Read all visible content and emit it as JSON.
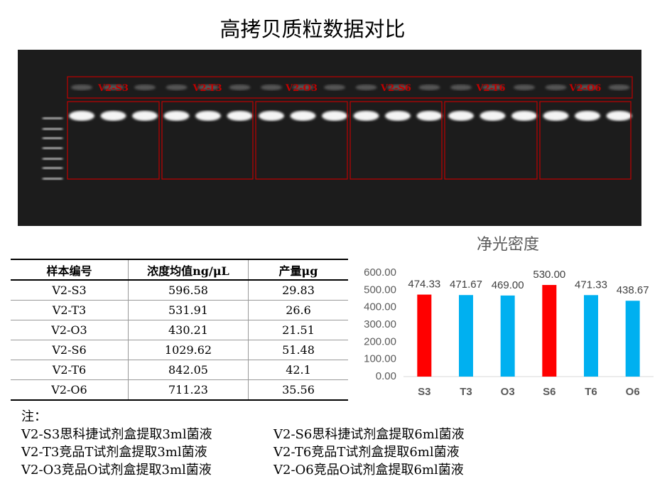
{
  "header": {
    "title": "高拷贝质粒数据对比"
  },
  "gel": {
    "labels": [
      "V2-S3",
      "V2-T3",
      "V2-O3",
      "V2-S6",
      "V2-T6",
      "V2-O6"
    ]
  },
  "table": {
    "columns": [
      "样本编号",
      "浓度均值ng/μL",
      "产量μg"
    ],
    "rows": [
      [
        "V2-S3",
        "596.58",
        "29.83"
      ],
      [
        "V2-T3",
        "531.91",
        "26.6"
      ],
      [
        "V2-O3",
        "430.21",
        "21.51"
      ],
      [
        "V2-S6",
        "1029.62",
        "51.48"
      ],
      [
        "V2-T6",
        "842.05",
        "42.1"
      ],
      [
        "V2-O6",
        "711.23",
        "35.56"
      ]
    ]
  },
  "chart_data": {
    "type": "bar",
    "title": "净光密度",
    "categories": [
      "S3",
      "T3",
      "O3",
      "S6",
      "T6",
      "O6"
    ],
    "values": [
      474.33,
      471.67,
      469,
      530,
      471.33,
      438.67
    ],
    "value_labels": [
      "474.33",
      "471.67",
      "469.00",
      "530.00",
      "471.33",
      "438.67"
    ],
    "colors": [
      "#ff0000",
      "#00b0f0",
      "#00b0f0",
      "#ff0000",
      "#00b0f0",
      "#00b0f0"
    ],
    "ylim": [
      0,
      600
    ],
    "yticks": [
      {
        "value": 0,
        "label": "0.00"
      },
      {
        "value": 100,
        "label": "100.00"
      },
      {
        "value": 200,
        "label": "200.00"
      },
      {
        "value": 300,
        "label": "300.00"
      },
      {
        "value": 400,
        "label": "400.00"
      },
      {
        "value": 500,
        "label": "500.00"
      },
      {
        "value": 600,
        "label": "600.00"
      }
    ],
    "grid": false
  },
  "notes": {
    "heading": "注：",
    "items": [
      "V2-S3思科捷试剂盒提取3ml菌液",
      "V2-S6思科捷试剂盒提取6ml菌液",
      "V2-T3竞品T试剂盒提取3ml菌液",
      "V2-T6竞品T试剂盒提取6ml菌液",
      "V2-O3竞品O试剂盒提取3ml菌液",
      "V2-O6竞品O试剂盒提取6ml菌液"
    ]
  }
}
